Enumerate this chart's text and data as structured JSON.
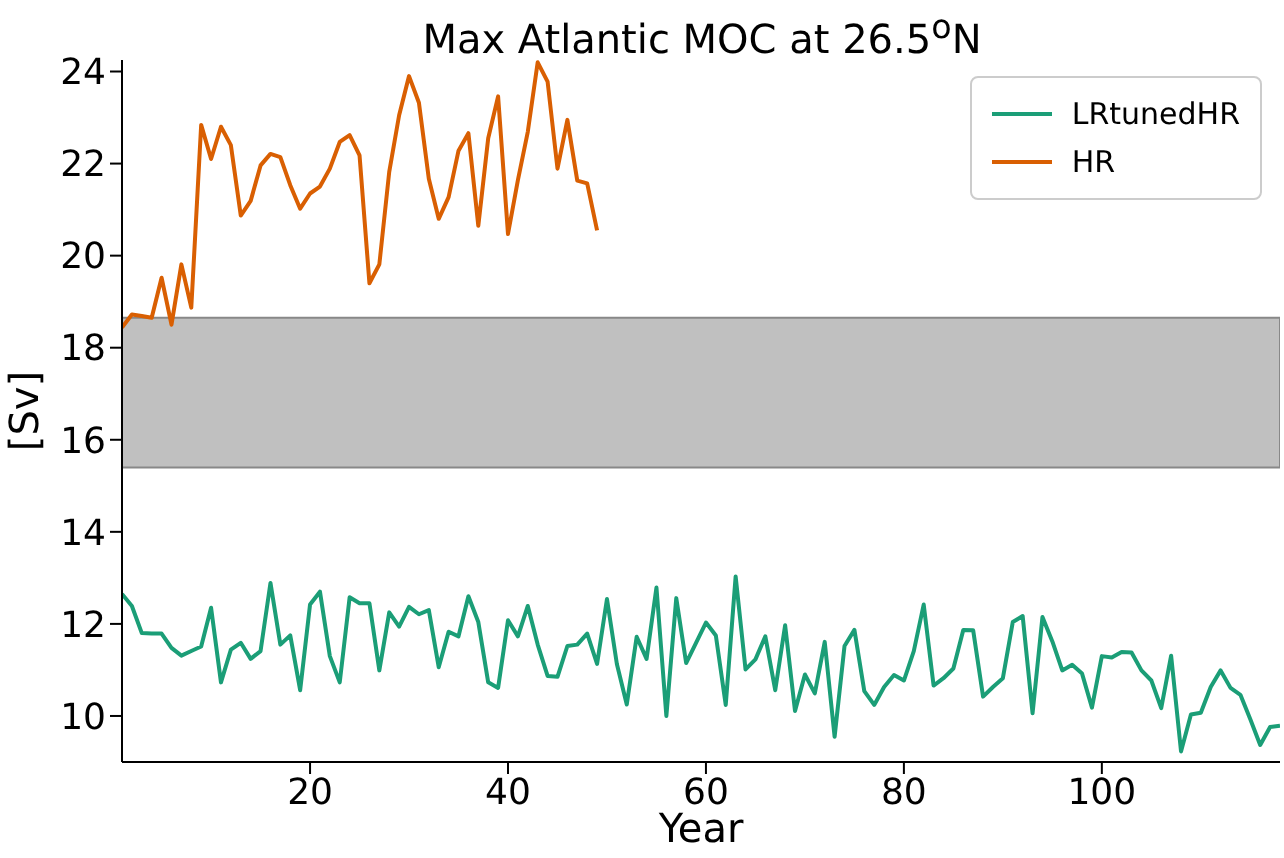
{
  "chart_data": {
    "type": "line",
    "title": "Max Atlantic MOC at 26.5$^{o}$N",
    "xlabel": "Year",
    "ylabel": "[Sv]",
    "xlim": [
      1,
      118
    ],
    "xticks": [
      20,
      40,
      60,
      80,
      100
    ],
    "ylim": [
      9,
      24.25
    ],
    "yticks": [
      10,
      12,
      14,
      16,
      18,
      20,
      22,
      24
    ],
    "grid": false,
    "legend": "top right",
    "line_style": "solid",
    "marker": "none",
    "bands": [
      {
        "axis": "y",
        "from": 15.4,
        "to": 18.65,
        "color": "#c0c0c0"
      }
    ],
    "series": [
      {
        "name": "LRtunedHR",
        "color": "#1b9e77",
        "x": [
          1,
          2,
          3,
          4,
          5,
          6,
          7,
          8,
          9,
          10,
          11,
          12,
          13,
          14,
          15,
          16,
          17,
          18,
          19,
          20,
          21,
          22,
          23,
          24,
          25,
          26,
          27,
          28,
          29,
          30,
          31,
          32,
          33,
          34,
          35,
          36,
          37,
          38,
          39,
          40,
          41,
          42,
          43,
          44,
          45,
          46,
          47,
          48,
          49,
          50,
          51,
          52,
          53,
          54,
          55,
          56,
          57,
          58,
          59,
          60,
          61,
          62,
          63,
          64,
          65,
          66,
          67,
          68,
          69,
          70,
          71,
          72,
          73,
          74,
          75,
          76,
          77,
          78,
          79,
          80,
          81,
          82,
          83,
          84,
          85,
          86,
          87,
          88,
          89,
          90,
          91,
          92,
          93,
          94,
          95,
          96,
          97,
          98,
          99,
          100,
          101,
          102,
          103,
          104,
          105,
          106,
          107,
          108,
          109,
          110,
          111,
          112,
          113,
          114,
          115,
          116,
          117,
          118
        ],
        "values": [
          12.65,
          12.39,
          11.8,
          11.79,
          11.79,
          11.48,
          11.31,
          11.41,
          11.51,
          12.35,
          10.73,
          11.44,
          11.59,
          11.24,
          11.41,
          12.89,
          11.55,
          11.75,
          10.56,
          12.42,
          12.7,
          11.3,
          10.73,
          12.58,
          12.45,
          12.45,
          10.99,
          12.25,
          11.94,
          12.37,
          12.21,
          12.3,
          11.06,
          11.83,
          11.73,
          12.6,
          12.04,
          10.73,
          10.61,
          12.08,
          11.73,
          12.39,
          11.55,
          10.87,
          10.85,
          11.52,
          11.55,
          11.79,
          11.13,
          12.54,
          11.13,
          10.25,
          11.72,
          11.24,
          12.79,
          10.0,
          12.56,
          11.15,
          11.59,
          12.03,
          11.75,
          10.24,
          13.03,
          11.01,
          11.23,
          11.73,
          10.56,
          11.97,
          10.11,
          10.9,
          10.49,
          11.61,
          9.55,
          11.52,
          11.87,
          10.54,
          10.24,
          10.63,
          10.89,
          10.77,
          11.41,
          12.42,
          10.66,
          10.82,
          11.03,
          11.87,
          11.86,
          10.42,
          10.63,
          10.82,
          12.04,
          12.17,
          10.06,
          12.15,
          11.62,
          10.99,
          11.11,
          10.92,
          10.18,
          11.3,
          11.27,
          11.39,
          11.38,
          10.99,
          10.77,
          10.17,
          11.31,
          9.23,
          10.03,
          10.07,
          10.63,
          10.99,
          10.61,
          10.46,
          9.93,
          9.37,
          9.76,
          9.79
        ]
      },
      {
        "name": "HR",
        "color": "#d95f02",
        "x": [
          1,
          2,
          3,
          4,
          5,
          6,
          7,
          8,
          9,
          10,
          11,
          12,
          13,
          14,
          15,
          16,
          17,
          18,
          19,
          20,
          21,
          22,
          23,
          24,
          25,
          26,
          27,
          28,
          29,
          30,
          31,
          32,
          33,
          34,
          35,
          36,
          37,
          38,
          39,
          40,
          41,
          42,
          43,
          44,
          45,
          46,
          47,
          48,
          49
        ],
        "values": [
          18.44,
          18.72,
          18.69,
          18.65,
          19.52,
          18.5,
          19.81,
          18.87,
          22.84,
          22.1,
          22.8,
          22.4,
          20.87,
          21.19,
          21.96,
          22.21,
          22.14,
          21.53,
          21.02,
          21.35,
          21.5,
          21.89,
          22.47,
          22.62,
          22.18,
          19.4,
          19.81,
          21.82,
          23.05,
          23.9,
          23.32,
          21.67,
          20.8,
          21.27,
          22.28,
          22.66,
          20.65,
          22.55,
          23.46,
          20.47,
          21.64,
          22.69,
          24.2,
          23.78,
          21.89,
          22.95,
          21.63,
          21.57,
          20.55
        ]
      }
    ]
  }
}
